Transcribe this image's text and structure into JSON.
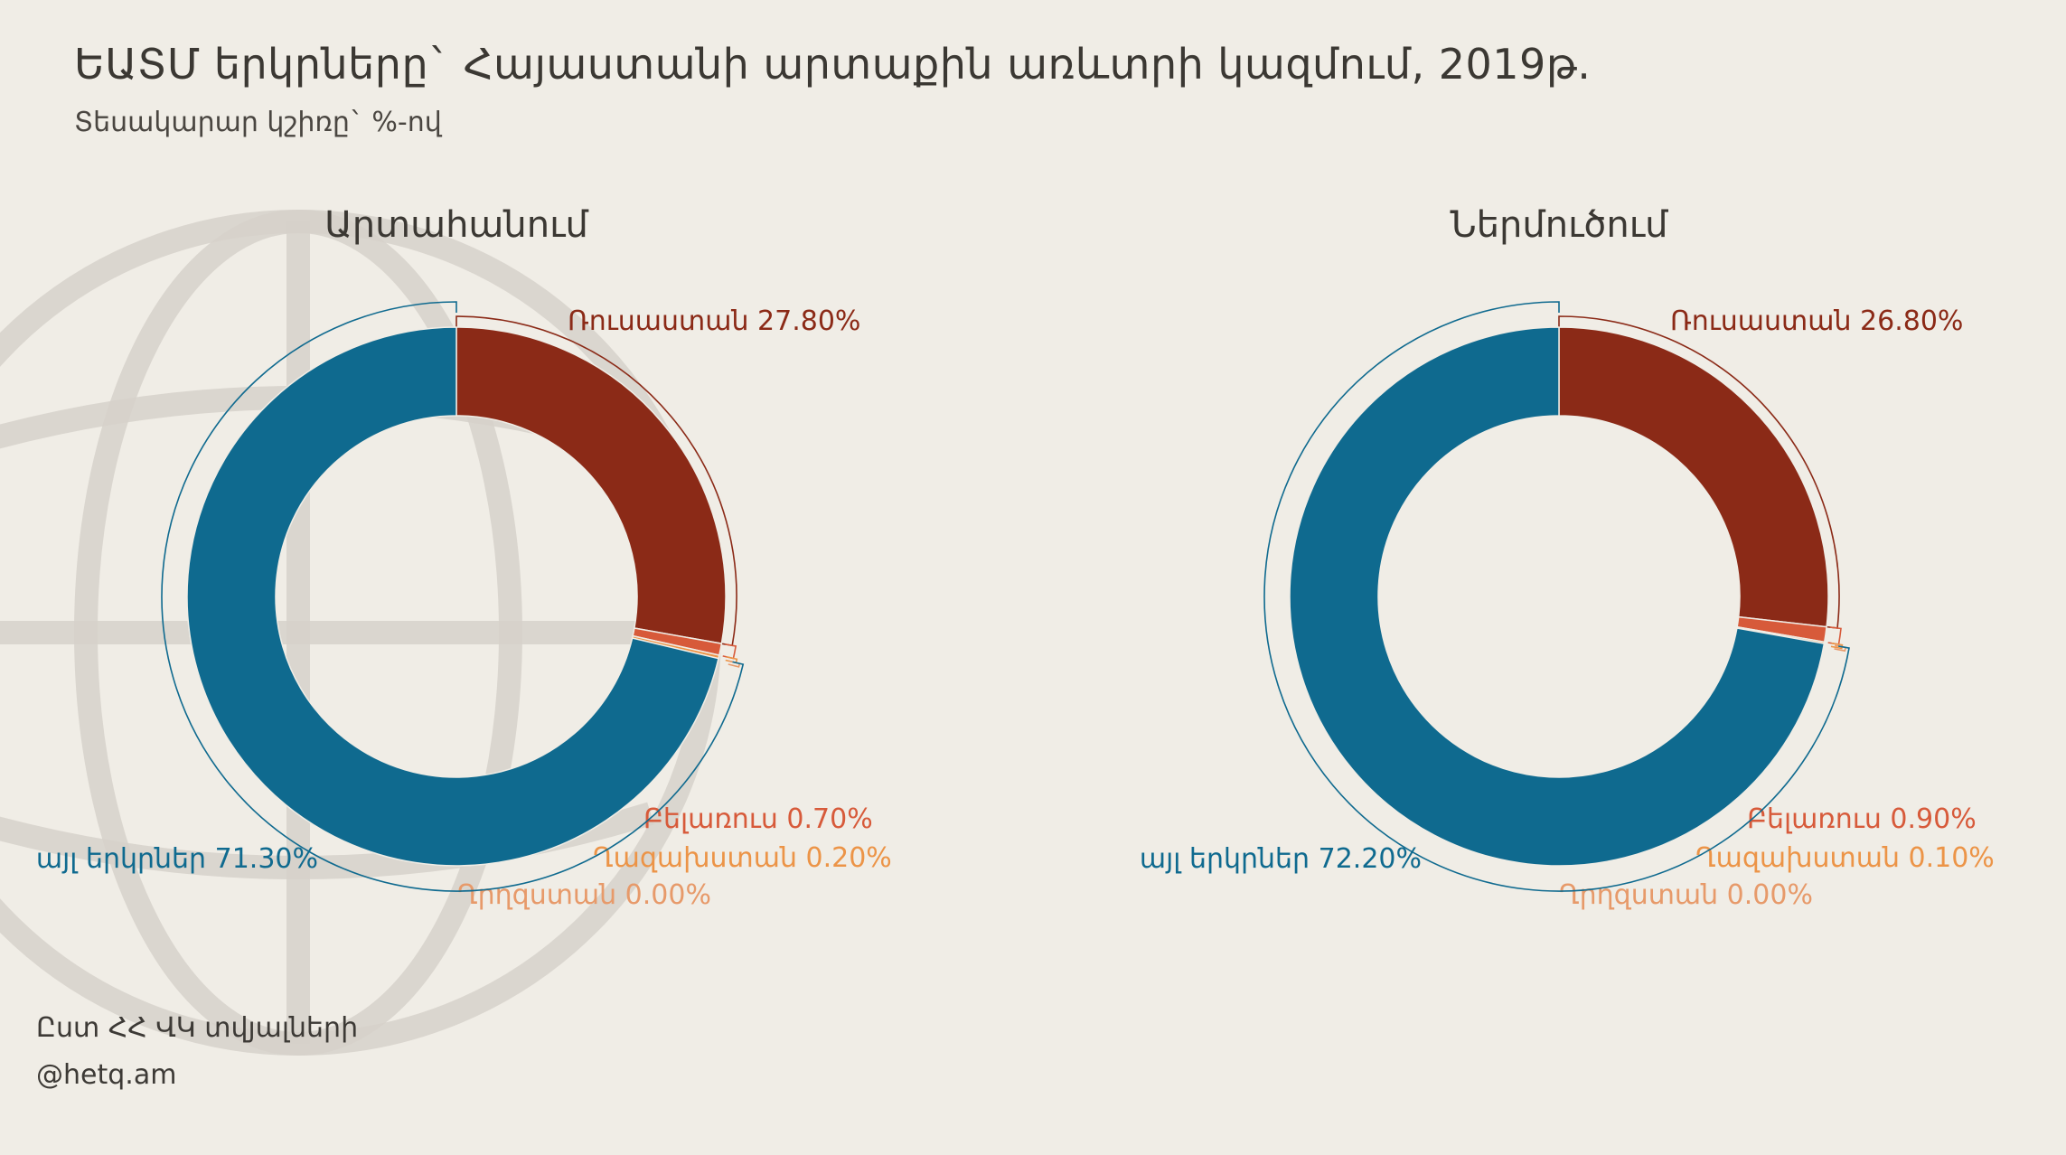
{
  "header": {
    "title": "ԵԱՏՄ երկրները` Հայաստանի արտաքին առևտրի կազմում, 2019թ.",
    "subtitle": "Տեսակարար կշիռը` %-ով"
  },
  "footer": {
    "source": "Ըստ ՀՀ ՎԿ տվյալների",
    "handle": "@hetq.am"
  },
  "colors": {
    "russia": "#8b2a17",
    "belarus": "#d75a3a",
    "kazakhstan": "#ec9447",
    "kyrgyzstan": "#e79a6a",
    "other": "#0f6a8f",
    "background": "#f0ede6",
    "globe": "#d6d1ca"
  },
  "chart_data": [
    {
      "type": "pie",
      "title": "Արտահանում",
      "unit": "%",
      "categories": [
        "Ռուսաստան",
        "Բելառուս",
        "Ղազախստան",
        "Ղրղզստան",
        "այլ երկրներ"
      ],
      "values": [
        27.8,
        0.7,
        0.2,
        0.0,
        71.3
      ],
      "labels": [
        "27.80%",
        "0.70%",
        "0.20%",
        "0.00%",
        "71.30%"
      ]
    },
    {
      "type": "pie",
      "title": "Ներմուծում",
      "unit": "%",
      "categories": [
        "Ռուսաստան",
        "Բելառուս",
        "Ղազախստան",
        "Ղրղզստան",
        "այլ երկրներ"
      ],
      "values": [
        26.8,
        0.9,
        0.1,
        0.0,
        72.2
      ],
      "labels": [
        "26.80%",
        "0.90%",
        "0.10%",
        "0.00%",
        "72.20%"
      ]
    }
  ]
}
